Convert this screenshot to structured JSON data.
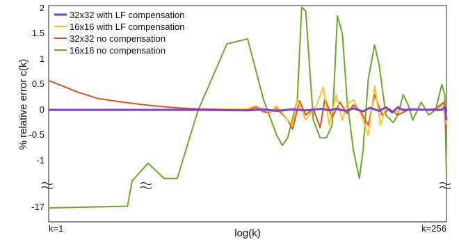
{
  "chart_data": {
    "type": "line",
    "xlabel": "log(k)",
    "ylabel": "% relative error  c(k)",
    "x_tick_labels": [
      "k=1",
      "k=256"
    ],
    "y_tick_labels": [
      "2",
      "1.5",
      "1",
      "0.5",
      "0",
      "-0.5",
      "-1",
      "-17"
    ],
    "y_axis_break": true,
    "ylim": [
      -17,
      2
    ],
    "xlim": [
      1,
      256
    ],
    "log_x": true,
    "grid": false,
    "legend_position": "top-left",
    "series": [
      {
        "name": "32x32 with LF compensation",
        "color": "#7a3fd6",
        "points": [
          [
            1,
            0
          ],
          [
            2,
            0
          ],
          [
            4,
            0
          ],
          [
            8,
            0
          ],
          [
            16,
            -0.01
          ],
          [
            20,
            0.01
          ],
          [
            24,
            -0.02
          ],
          [
            30,
            0.01
          ],
          [
            36,
            -0.01
          ],
          [
            45,
            0.02
          ],
          [
            50,
            -0.01
          ],
          [
            55,
            0.02
          ],
          [
            63,
            -0.02
          ],
          [
            70,
            0.03
          ],
          [
            80,
            -0.03
          ],
          [
            88,
            0.04
          ],
          [
            100,
            -0.02
          ],
          [
            110,
            0.05
          ],
          [
            120,
            -0.05
          ],
          [
            130,
            0.05
          ],
          [
            140,
            0
          ],
          [
            160,
            0.01
          ],
          [
            200,
            0
          ],
          [
            240,
            0
          ],
          [
            250,
            0.05
          ],
          [
            256,
            -0.2
          ]
        ]
      },
      {
        "name": "16x16 with LF compensation",
        "color": "#ffc125",
        "points": [
          [
            1,
            0
          ],
          [
            2,
            0
          ],
          [
            4,
            0
          ],
          [
            8,
            0
          ],
          [
            12,
            0.01
          ],
          [
            16,
            0.02
          ],
          [
            18,
            0.08
          ],
          [
            20,
            0
          ],
          [
            22,
            -0.05
          ],
          [
            24,
            0.08
          ],
          [
            28,
            -0.2
          ],
          [
            30,
            -0.3
          ],
          [
            32,
            0.2
          ],
          [
            36,
            -0.2
          ],
          [
            42,
            0.1
          ],
          [
            46,
            0.45
          ],
          [
            50,
            -0.3
          ],
          [
            55,
            0.3
          ],
          [
            60,
            -0.2
          ],
          [
            64,
            0.1
          ],
          [
            70,
            0.2
          ],
          [
            78,
            -0.1
          ],
          [
            86,
            -0.5
          ],
          [
            94,
            0.47
          ],
          [
            102,
            -0.3
          ],
          [
            110,
            0.05
          ],
          [
            120,
            -0.05
          ],
          [
            140,
            0
          ],
          [
            180,
            0
          ],
          [
            220,
            0
          ],
          [
            245,
            0.1
          ],
          [
            256,
            -0.3
          ]
        ]
      },
      {
        "name": "32x32 no compensation",
        "color": "#d9531e",
        "points": [
          [
            1,
            0.58
          ],
          [
            1.5,
            0.35
          ],
          [
            2,
            0.22
          ],
          [
            3,
            0.14
          ],
          [
            4,
            0.09
          ],
          [
            6,
            0.04
          ],
          [
            8,
            0.02
          ],
          [
            12,
            0.01
          ],
          [
            16,
            0.0
          ],
          [
            18,
            0.05
          ],
          [
            20,
            -0.04
          ],
          [
            22,
            -0.05
          ],
          [
            24,
            0.03
          ],
          [
            28,
            -0.2
          ],
          [
            30,
            -0.38
          ],
          [
            33,
            0.18
          ],
          [
            36,
            -0.1
          ],
          [
            40,
            0.02
          ],
          [
            44,
            -0.35
          ],
          [
            47,
            0.22
          ],
          [
            52,
            -0.15
          ],
          [
            58,
            0.15
          ],
          [
            64,
            -0.07
          ],
          [
            70,
            0.1
          ],
          [
            78,
            -0.05
          ],
          [
            86,
            -0.3
          ],
          [
            94,
            0.3
          ],
          [
            104,
            -0.1
          ],
          [
            115,
            0.02
          ],
          [
            130,
            -0.1
          ],
          [
            150,
            0
          ],
          [
            180,
            0
          ],
          [
            220,
            0.02
          ],
          [
            246,
            0.15
          ],
          [
            256,
            -0.5
          ]
        ]
      },
      {
        "name": "16x16 no compensation",
        "color": "#6aa82a",
        "points": [
          [
            1,
            -17
          ],
          [
            3,
            -16
          ],
          [
            3.2,
            -1.4
          ],
          [
            4,
            -1.05
          ],
          [
            5,
            -1.35
          ],
          [
            6,
            -1.35
          ],
          [
            8,
            -0.02
          ],
          [
            12,
            1.3
          ],
          [
            16,
            1.4
          ],
          [
            20,
            0.2
          ],
          [
            24,
            -0.5
          ],
          [
            26,
            -0.7
          ],
          [
            28,
            -0.55
          ],
          [
            32,
            0.2
          ],
          [
            34,
            2.02
          ],
          [
            36,
            1.95
          ],
          [
            40,
            -0.2
          ],
          [
            44,
            -0.55
          ],
          [
            48,
            -0.55
          ],
          [
            52,
            -0.3
          ],
          [
            56,
            1.85
          ],
          [
            60,
            1.5
          ],
          [
            64,
            0.2
          ],
          [
            70,
            -0.8
          ],
          [
            76,
            -1.35
          ],
          [
            80,
            -0.8
          ],
          [
            86,
            0.6
          ],
          [
            94,
            1.28
          ],
          [
            100,
            0.9
          ],
          [
            110,
            -0.1
          ],
          [
            122,
            -0.25
          ],
          [
            130,
            -0.1
          ],
          [
            140,
            0.3
          ],
          [
            150,
            0.1
          ],
          [
            160,
            -0.2
          ],
          [
            180,
            0.15
          ],
          [
            200,
            -0.1
          ],
          [
            220,
            0
          ],
          [
            240,
            0.5
          ],
          [
            250,
            0.3
          ],
          [
            256,
            -1.35
          ]
        ]
      }
    ]
  }
}
